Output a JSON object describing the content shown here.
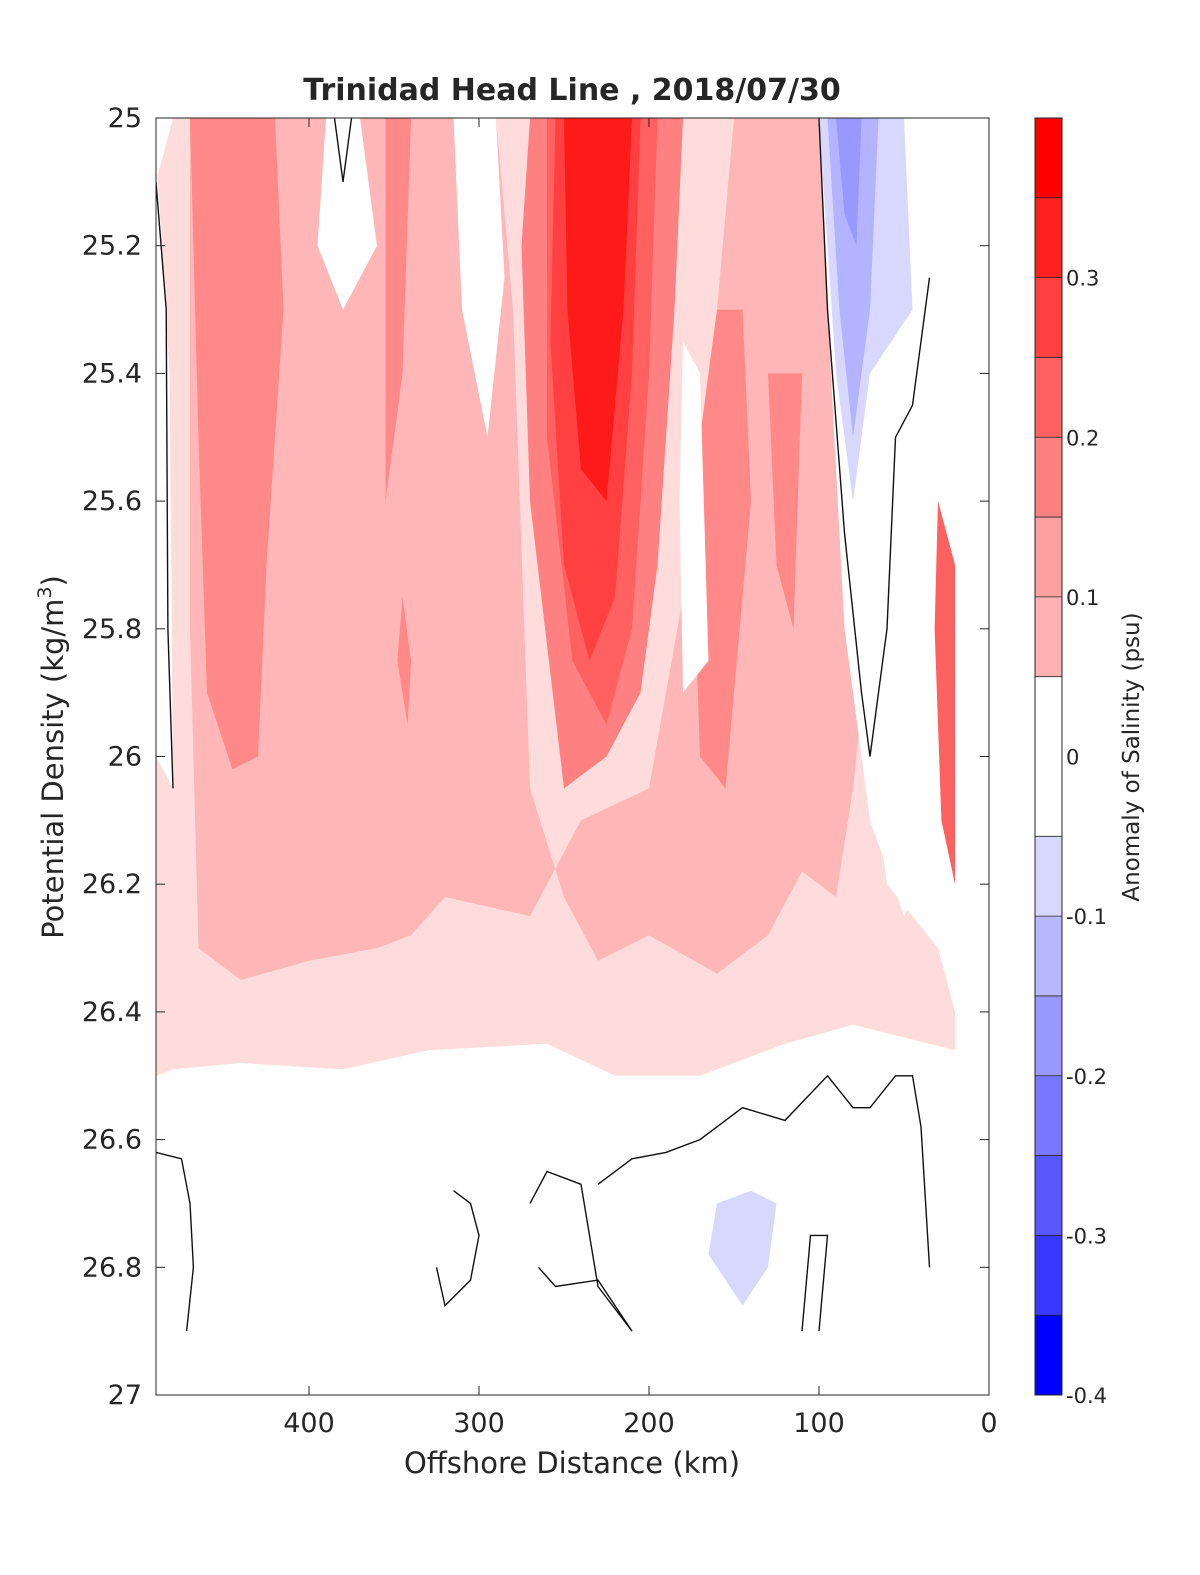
{
  "chart_data": {
    "type": "heatmap",
    "title": "Trinidad Head Line , 2018/07/30",
    "xlabel": "Offshore Distance (km)",
    "ylabel": "Potential Density (kg/m",
    "ylabel_sup": "3",
    "ylabel_close": ")",
    "xlim": [
      490,
      0
    ],
    "x_reversed": true,
    "ylim": [
      25,
      27
    ],
    "y_reversed": true,
    "xticks": [
      400,
      300,
      200,
      100,
      0
    ],
    "yticks": [
      "25",
      "25.2",
      "25.4",
      "25.6",
      "25.8",
      "26",
      "26.2",
      "26.4",
      "26.6",
      "26.8",
      "27"
    ],
    "colorbar": {
      "label": "Anomaly of Salinity (psu)",
      "range": [
        -0.4,
        0.4
      ],
      "ticks": [
        "0.3",
        "0.2",
        "0.1",
        "0",
        "-0.1",
        "-0.2",
        "-0.3",
        "-0.4"
      ],
      "tick_values": [
        0.3,
        0.2,
        0.1,
        0,
        -0.1,
        -0.2,
        -0.3,
        -0.4
      ],
      "bands": [
        {
          "range": [
            0.35,
            0.4
          ],
          "color": "#ff0000"
        },
        {
          "range": [
            0.3,
            0.35
          ],
          "color": "#ff2020"
        },
        {
          "range": [
            0.25,
            0.3
          ],
          "color": "#ff4040"
        },
        {
          "range": [
            0.2,
            0.25
          ],
          "color": "#ff6060"
        },
        {
          "range": [
            0.15,
            0.2
          ],
          "color": "#ff8080"
        },
        {
          "range": [
            0.1,
            0.15
          ],
          "color": "#ffa0a0"
        },
        {
          "range": [
            0.05,
            0.1
          ],
          "color": "#ffb2b2"
        },
        {
          "range": [
            -0.05,
            0.05
          ],
          "color": "#ffffff"
        },
        {
          "range": [
            -0.1,
            -0.05
          ],
          "color": "#d8d8ff"
        },
        {
          "range": [
            -0.15,
            -0.1
          ],
          "color": "#b8b8ff"
        },
        {
          "range": [
            -0.2,
            -0.15
          ],
          "color": "#9898ff"
        },
        {
          "range": [
            -0.25,
            -0.2
          ],
          "color": "#7878ff"
        },
        {
          "range": [
            -0.3,
            -0.25
          ],
          "color": "#5858ff"
        },
        {
          "range": [
            -0.35,
            -0.3
          ],
          "color": "#3838ff"
        },
        {
          "range": [
            -0.4,
            -0.35
          ],
          "color": "#0000ff"
        }
      ]
    },
    "regions": [
      {
        "name": "light-pink background upper",
        "level": 0.06,
        "color": "#ffdcdc",
        "points": [
          [
            480,
            25
          ],
          [
            100,
            25
          ],
          [
            90,
            25.6
          ],
          [
            60,
            26.2
          ],
          [
            30,
            26.3
          ],
          [
            20,
            26.4
          ],
          [
            20,
            26.46
          ],
          [
            80,
            26.42
          ],
          [
            120,
            26.45
          ],
          [
            170,
            26.5
          ],
          [
            220,
            26.5
          ],
          [
            260,
            26.45
          ],
          [
            330,
            26.46
          ],
          [
            380,
            26.49
          ],
          [
            440,
            26.48
          ],
          [
            480,
            26.49
          ],
          [
            490,
            26.5
          ],
          [
            490,
            25.1
          ]
        ]
      },
      {
        "name": "pink broad body",
        "level": 0.12,
        "color": "#ffb6b6",
        "points": [
          [
            470,
            25
          ],
          [
            290,
            25
          ],
          [
            280,
            25.3
          ],
          [
            270,
            26.05
          ],
          [
            250,
            26.22
          ],
          [
            230,
            26.32
          ],
          [
            200,
            26.28
          ],
          [
            160,
            26.34
          ],
          [
            130,
            26.28
          ],
          [
            110,
            26.18
          ],
          [
            90,
            26.22
          ],
          [
            80,
            26.05
          ],
          [
            70,
            25.8
          ],
          [
            80,
            25.2
          ],
          [
            95,
            25
          ],
          [
            150,
            25
          ],
          [
            170,
            25.6
          ],
          [
            190,
            25.9
          ],
          [
            200,
            26.05
          ],
          [
            240,
            26.1
          ],
          [
            270,
            26.25
          ],
          [
            320,
            26.22
          ],
          [
            340,
            26.28
          ],
          [
            360,
            26.3
          ],
          [
            400,
            26.32
          ],
          [
            440,
            26.35
          ],
          [
            465,
            26.3
          ],
          [
            470,
            25.8
          ]
        ]
      },
      {
        "name": "pink band west",
        "level": 0.17,
        "color": "#ff8888",
        "points": [
          [
            470,
            25
          ],
          [
            420,
            25
          ],
          [
            415,
            25.3
          ],
          [
            425,
            25.7
          ],
          [
            430,
            26.0
          ],
          [
            445,
            26.02
          ],
          [
            460,
            25.9
          ],
          [
            465,
            25.5
          ]
        ]
      },
      {
        "name": "pink band mid-west",
        "level": 0.17,
        "color": "#ff8888",
        "points": [
          [
            355,
            25
          ],
          [
            340,
            25
          ],
          [
            345,
            25.4
          ],
          [
            355,
            25.6
          ]
        ]
      },
      {
        "name": "pink streak mid-west lower",
        "level": 0.17,
        "color": "#ff8888",
        "points": [
          [
            345,
            25.75
          ],
          [
            340,
            25.85
          ],
          [
            342,
            25.95
          ],
          [
            348,
            25.85
          ]
        ]
      },
      {
        "name": "central salty core outer",
        "level": 0.17,
        "color": "#ff8080",
        "points": [
          [
            270,
            25
          ],
          [
            180,
            25
          ],
          [
            185,
            25.3
          ],
          [
            195,
            25.7
          ],
          [
            205,
            25.9
          ],
          [
            225,
            26.0
          ],
          [
            250,
            26.05
          ],
          [
            270,
            25.6
          ],
          [
            275,
            25.2
          ]
        ]
      },
      {
        "name": "central salty core mid",
        "level": 0.22,
        "color": "#ff6060",
        "points": [
          [
            260,
            25
          ],
          [
            195,
            25
          ],
          [
            200,
            25.4
          ],
          [
            210,
            25.8
          ],
          [
            225,
            25.95
          ],
          [
            245,
            25.85
          ],
          [
            260,
            25.5
          ]
        ]
      },
      {
        "name": "central salty core inner",
        "level": 0.27,
        "color": "#ff4040",
        "points": [
          [
            255,
            25
          ],
          [
            205,
            25
          ],
          [
            210,
            25.4
          ],
          [
            220,
            25.75
          ],
          [
            235,
            25.85
          ],
          [
            250,
            25.7
          ],
          [
            258,
            25.35
          ]
        ]
      },
      {
        "name": "central salty core peak",
        "level": 0.33,
        "color": "#ff1a1a",
        "points": [
          [
            250,
            25
          ],
          [
            210,
            25
          ],
          [
            215,
            25.3
          ],
          [
            225,
            25.6
          ],
          [
            240,
            25.55
          ],
          [
            248,
            25.3
          ]
        ]
      },
      {
        "name": "pink band east of core",
        "level": 0.17,
        "color": "#ff8888",
        "points": [
          [
            160,
            25.3
          ],
          [
            145,
            25.3
          ],
          [
            140,
            25.6
          ],
          [
            155,
            26.05
          ],
          [
            170,
            26.0
          ],
          [
            175,
            25.6
          ]
        ]
      },
      {
        "name": "pink streak east",
        "level": 0.17,
        "color": "#ff8888",
        "points": [
          [
            130,
            25.4
          ],
          [
            110,
            25.4
          ],
          [
            115,
            25.8
          ],
          [
            125,
            25.7
          ]
        ]
      },
      {
        "name": "white gap west",
        "level": 0.0,
        "color": "#ffffff",
        "points": [
          [
            390,
            25
          ],
          [
            370,
            25
          ],
          [
            360,
            25.2
          ],
          [
            380,
            25.3
          ],
          [
            395,
            25.2
          ]
        ]
      },
      {
        "name": "white gap centre-left",
        "level": 0.0,
        "color": "#ffffff",
        "points": [
          [
            315,
            25
          ],
          [
            290,
            25
          ],
          [
            285,
            25.25
          ],
          [
            295,
            25.5
          ],
          [
            310,
            25.3
          ]
        ]
      },
      {
        "name": "white gap east of core",
        "level": 0.0,
        "color": "#ffffff",
        "points": [
          [
            180,
            25.35
          ],
          [
            170,
            25.4
          ],
          [
            165,
            25.85
          ],
          [
            180,
            25.9
          ],
          [
            182,
            25.6
          ]
        ]
      },
      {
        "name": "white region near coast",
        "level": 0.0,
        "color": "#ffffff",
        "points": [
          [
            100,
            25
          ],
          [
            40,
            25
          ],
          [
            30,
            25.6
          ],
          [
            25,
            25.7
          ],
          [
            30,
            26.0
          ],
          [
            40,
            26.2
          ],
          [
            50,
            26.25
          ],
          [
            70,
            26.1
          ],
          [
            85,
            25.8
          ],
          [
            95,
            25.3
          ]
        ]
      },
      {
        "name": "white strip at western edge",
        "level": 0.0,
        "color": "#ffffff",
        "points": [
          [
            490,
            25.05
          ],
          [
            482,
            25.4
          ],
          [
            480,
            26.05
          ],
          [
            490,
            26.0
          ]
        ]
      },
      {
        "name": "blue fresh patch near coast",
        "level": -0.08,
        "color": "#d8d8ff",
        "points": [
          [
            100,
            25
          ],
          [
            50,
            25
          ],
          [
            45,
            25.3
          ],
          [
            70,
            25.4
          ],
          [
            80,
            25.6
          ],
          [
            90,
            25.4
          ]
        ]
      },
      {
        "name": "blue fresh core near coast",
        "level": -0.13,
        "color": "#b3b3ff",
        "points": [
          [
            95,
            25
          ],
          [
            65,
            25
          ],
          [
            70,
            25.3
          ],
          [
            80,
            25.5
          ],
          [
            88,
            25.3
          ]
        ]
      },
      {
        "name": "blue fresh peak near coast",
        "level": -0.18,
        "color": "#9898ff",
        "points": [
          [
            90,
            25
          ],
          [
            75,
            25
          ],
          [
            78,
            25.2
          ],
          [
            85,
            25.15
          ]
        ]
      },
      {
        "name": "coastal salty strip",
        "level": 0.22,
        "color": "#ff6060",
        "points": [
          [
            30,
            25.6
          ],
          [
            20,
            25.7
          ],
          [
            20,
            26.2
          ],
          [
            28,
            26.1
          ],
          [
            32,
            25.8
          ]
        ]
      },
      {
        "name": "blue patch deep",
        "level": -0.07,
        "color": "#d8d8ff",
        "points": [
          [
            160,
            26.7
          ],
          [
            140,
            26.68
          ],
          [
            125,
            26.7
          ],
          [
            130,
            26.8
          ],
          [
            145,
            26.86
          ],
          [
            165,
            26.78
          ]
        ]
      }
    ],
    "contours": [
      {
        "name": "zero contour west edge",
        "points": [
          [
            490,
            25.1
          ],
          [
            484,
            25.3
          ],
          [
            483,
            25.8
          ],
          [
            480,
            26.05
          ]
        ]
      },
      {
        "name": "zero contour far west lower",
        "points": [
          [
            490,
            26.62
          ],
          [
            475,
            26.63
          ],
          [
            470,
            26.7
          ],
          [
            468,
            26.8
          ],
          [
            472,
            26.9
          ]
        ]
      },
      {
        "name": "zero contour tongue near 380",
        "points": [
          [
            385,
            25
          ],
          [
            380,
            25.1
          ],
          [
            375,
            25
          ]
        ]
      },
      {
        "name": "zero contour ring 320",
        "points": [
          [
            315,
            26.68
          ],
          [
            305,
            26.7
          ],
          [
            300,
            26.75
          ],
          [
            305,
            26.82
          ],
          [
            320,
            26.86
          ],
          [
            325,
            26.8
          ]
        ]
      },
      {
        "name": "zero contour deep meander",
        "points": [
          [
            265,
            26.8
          ],
          [
            255,
            26.83
          ],
          [
            230,
            26.82
          ],
          [
            210,
            26.9
          ],
          [
            230,
            26.83
          ],
          [
            240,
            26.67
          ],
          [
            260,
            26.65
          ],
          [
            270,
            26.7
          ]
        ]
      },
      {
        "name": "zero contour deep upper",
        "points": [
          [
            230,
            26.67
          ],
          [
            210,
            26.63
          ],
          [
            190,
            26.62
          ],
          [
            170,
            26.6
          ],
          [
            145,
            26.55
          ],
          [
            120,
            26.57
          ],
          [
            95,
            26.5
          ],
          [
            80,
            26.55
          ],
          [
            70,
            26.55
          ],
          [
            55,
            26.5
          ],
          [
            45,
            26.5
          ],
          [
            40,
            26.58
          ],
          [
            35,
            26.8
          ]
        ]
      },
      {
        "name": "zero contour near 100",
        "points": [
          [
            110,
            26.9
          ],
          [
            105,
            26.75
          ],
          [
            95,
            26.75
          ],
          [
            100,
            26.9
          ]
        ]
      },
      {
        "name": "zero contour coastal",
        "points": [
          [
            100,
            25
          ],
          [
            95,
            25.3
          ],
          [
            85,
            25.65
          ],
          [
            75,
            25.9
          ],
          [
            70,
            26.0
          ],
          [
            60,
            25.8
          ],
          [
            55,
            25.5
          ],
          [
            45,
            25.45
          ],
          [
            35,
            25.25
          ]
        ]
      }
    ]
  }
}
